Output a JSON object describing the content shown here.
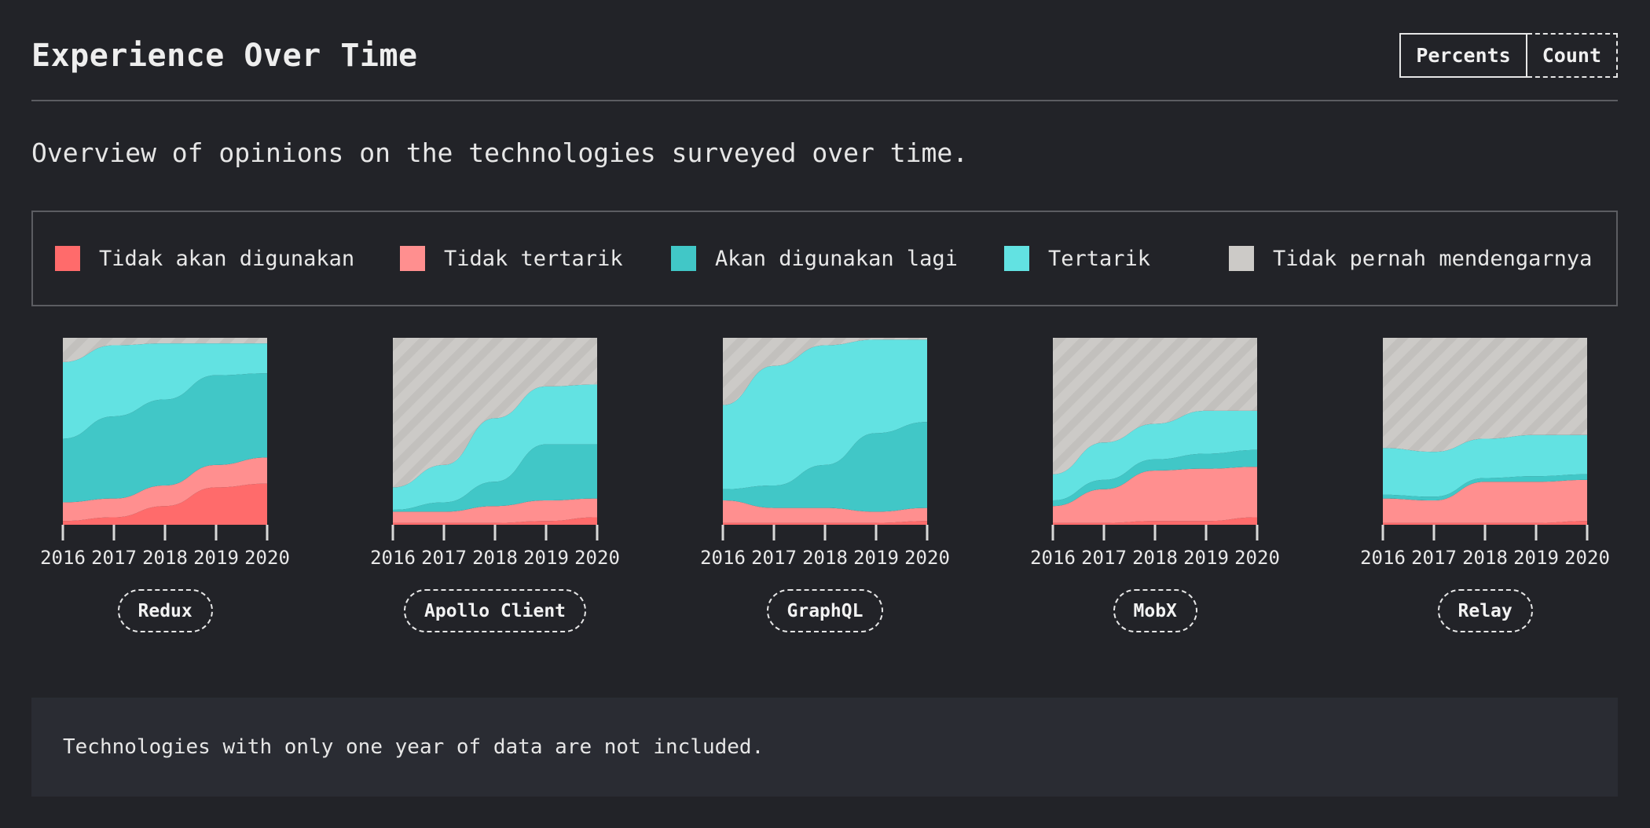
{
  "header": {
    "title": "Experience Over Time",
    "toggle": {
      "percents_label": "Percents",
      "count_label": "Count",
      "active": "percents"
    }
  },
  "subtitle": "Overview of opinions on the technologies surveyed over time.",
  "legend": [
    {
      "label": "Tidak akan digunakan",
      "color": "#ff6b6b"
    },
    {
      "label": "Tidak tertarik",
      "color": "#ff8f8f"
    },
    {
      "label": "Akan digunakan lagi",
      "color": "#41c7c7"
    },
    {
      "label": "Tertarik",
      "color": "#62e2e2"
    },
    {
      "label": "Tidak pernah mendengarnya",
      "color": "#cccac7"
    }
  ],
  "note": "Technologies with only one year of data are not included.",
  "chart_data": [
    {
      "type": "area",
      "stacked": true,
      "normalized": true,
      "tech": "Redux",
      "x": [
        "2016",
        "2017",
        "2018",
        "2019",
        "2020"
      ],
      "ylim": [
        0,
        100
      ],
      "series": [
        {
          "name": "Tidak akan digunakan",
          "values": [
            2,
            4,
            10,
            20,
            22
          ]
        },
        {
          "name": "Tidak tertarik",
          "values": [
            10,
            10,
            11,
            12,
            14
          ]
        },
        {
          "name": "Akan digunakan lagi",
          "values": [
            34,
            44,
            46,
            48,
            45
          ]
        },
        {
          "name": "Tertarik",
          "values": [
            41,
            38,
            30,
            17,
            16
          ]
        },
        {
          "name": "Tidak pernah mendengarnya",
          "values": [
            13,
            4,
            3,
            3,
            3
          ]
        }
      ]
    },
    {
      "type": "area",
      "stacked": true,
      "normalized": true,
      "tech": "Apollo Client",
      "x": [
        "2016",
        "2017",
        "2018",
        "2019",
        "2020"
      ],
      "ylim": [
        0,
        100
      ],
      "series": [
        {
          "name": "Tidak akan digunakan",
          "values": [
            1,
            1,
            1,
            2,
            4
          ]
        },
        {
          "name": "Tidak tertarik",
          "values": [
            6,
            6,
            9,
            11,
            10
          ]
        },
        {
          "name": "Akan digunakan lagi",
          "values": [
            1,
            5,
            13,
            30,
            29
          ]
        },
        {
          "name": "Tertarik",
          "values": [
            12,
            20,
            34,
            31,
            32
          ]
        },
        {
          "name": "Tidak pernah mendengarnya",
          "values": [
            80,
            68,
            43,
            26,
            25
          ]
        }
      ]
    },
    {
      "type": "area",
      "stacked": true,
      "normalized": true,
      "tech": "GraphQL",
      "x": [
        "2016",
        "2017",
        "2018",
        "2019",
        "2020"
      ],
      "ylim": [
        0,
        100
      ],
      "series": [
        {
          "name": "Tidak akan digunakan",
          "values": [
            1,
            1,
            1,
            1,
            2
          ]
        },
        {
          "name": "Tidak tertarik",
          "values": [
            12,
            8,
            8,
            6,
            7
          ]
        },
        {
          "name": "Akan digunakan lagi",
          "values": [
            6,
            12,
            23,
            42,
            46
          ]
        },
        {
          "name": "Tertarik",
          "values": [
            45,
            64,
            64,
            50,
            44
          ]
        },
        {
          "name": "Tidak pernah mendengarnya",
          "values": [
            36,
            15,
            4,
            1,
            1
          ]
        }
      ]
    },
    {
      "type": "area",
      "stacked": true,
      "normalized": true,
      "tech": "MobX",
      "x": [
        "2016",
        "2017",
        "2018",
        "2019",
        "2020"
      ],
      "ylim": [
        0,
        100
      ],
      "series": [
        {
          "name": "Tidak akan digunakan",
          "values": [
            1,
            1,
            2,
            2,
            4
          ]
        },
        {
          "name": "Tidak tertarik",
          "values": [
            9,
            18,
            27,
            28,
            27
          ]
        },
        {
          "name": "Akan digunakan lagi",
          "values": [
            3,
            5,
            6,
            8,
            9
          ]
        },
        {
          "name": "Tertarik",
          "values": [
            14,
            20,
            19,
            23,
            21
          ]
        },
        {
          "name": "Tidak pernah mendengarnya",
          "values": [
            73,
            56,
            46,
            39,
            39
          ]
        }
      ]
    },
    {
      "type": "area",
      "stacked": true,
      "normalized": true,
      "tech": "Relay",
      "x": [
        "2016",
        "2017",
        "2018",
        "2019",
        "2020"
      ],
      "ylim": [
        0,
        100
      ],
      "series": [
        {
          "name": "Tidak akan digunakan",
          "values": [
            1,
            1,
            1,
            1,
            2
          ]
        },
        {
          "name": "Tidak tertarik",
          "values": [
            13,
            12,
            22,
            22,
            22
          ]
        },
        {
          "name": "Akan digunakan lagi",
          "values": [
            2,
            2,
            2,
            3,
            3
          ]
        },
        {
          "name": "Tertarik",
          "values": [
            25,
            24,
            21,
            22,
            21
          ]
        },
        {
          "name": "Tidak pernah mendengarnya",
          "values": [
            59,
            61,
            54,
            52,
            52
          ]
        }
      ]
    }
  ]
}
